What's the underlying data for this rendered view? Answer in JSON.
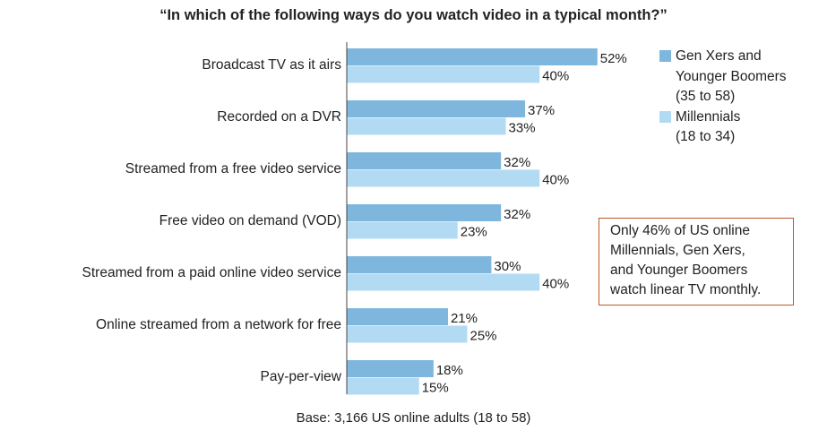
{
  "colors": {
    "series_1": "#7eb6dd",
    "series_2": "#b2dbf3",
    "note_border": "#c0562a"
  },
  "chart_data": {
    "type": "bar",
    "orientation": "horizontal",
    "title": "“In which of the following ways do you watch video in a typical month?”",
    "categories": [
      "Broadcast TV as it airs",
      "Recorded on a DVR",
      "Streamed from a free video service",
      "Free video on demand (VOD)",
      "Streamed from a paid online video service",
      "Online streamed from a network for free",
      "Pay-per-view"
    ],
    "series": [
      {
        "name": "Gen Xers and\nYounger Boomers\n(35 to 58)",
        "values": [
          52,
          37,
          32,
          32,
          30,
          21,
          18
        ],
        "labels": [
          "52%",
          "37%",
          "32%",
          "32%",
          "30%",
          "21%",
          "18%"
        ]
      },
      {
        "name": "Millennials\n(18 to 34)",
        "values": [
          40,
          33,
          40,
          23,
          40,
          25,
          15
        ],
        "labels": [
          "40%",
          "33%",
          "40%",
          "23%",
          "40%",
          "25%",
          "15%"
        ]
      }
    ],
    "unit": "%",
    "xlim": [
      0,
      60
    ],
    "grid": false,
    "legend_position": "right"
  },
  "annotation": "Only 46% of US online\nMillennials, Gen Xers,\nand Younger Boomers\nwatch linear TV monthly.",
  "footnote": "Base: 3,166 US online adults (18 to 58)"
}
